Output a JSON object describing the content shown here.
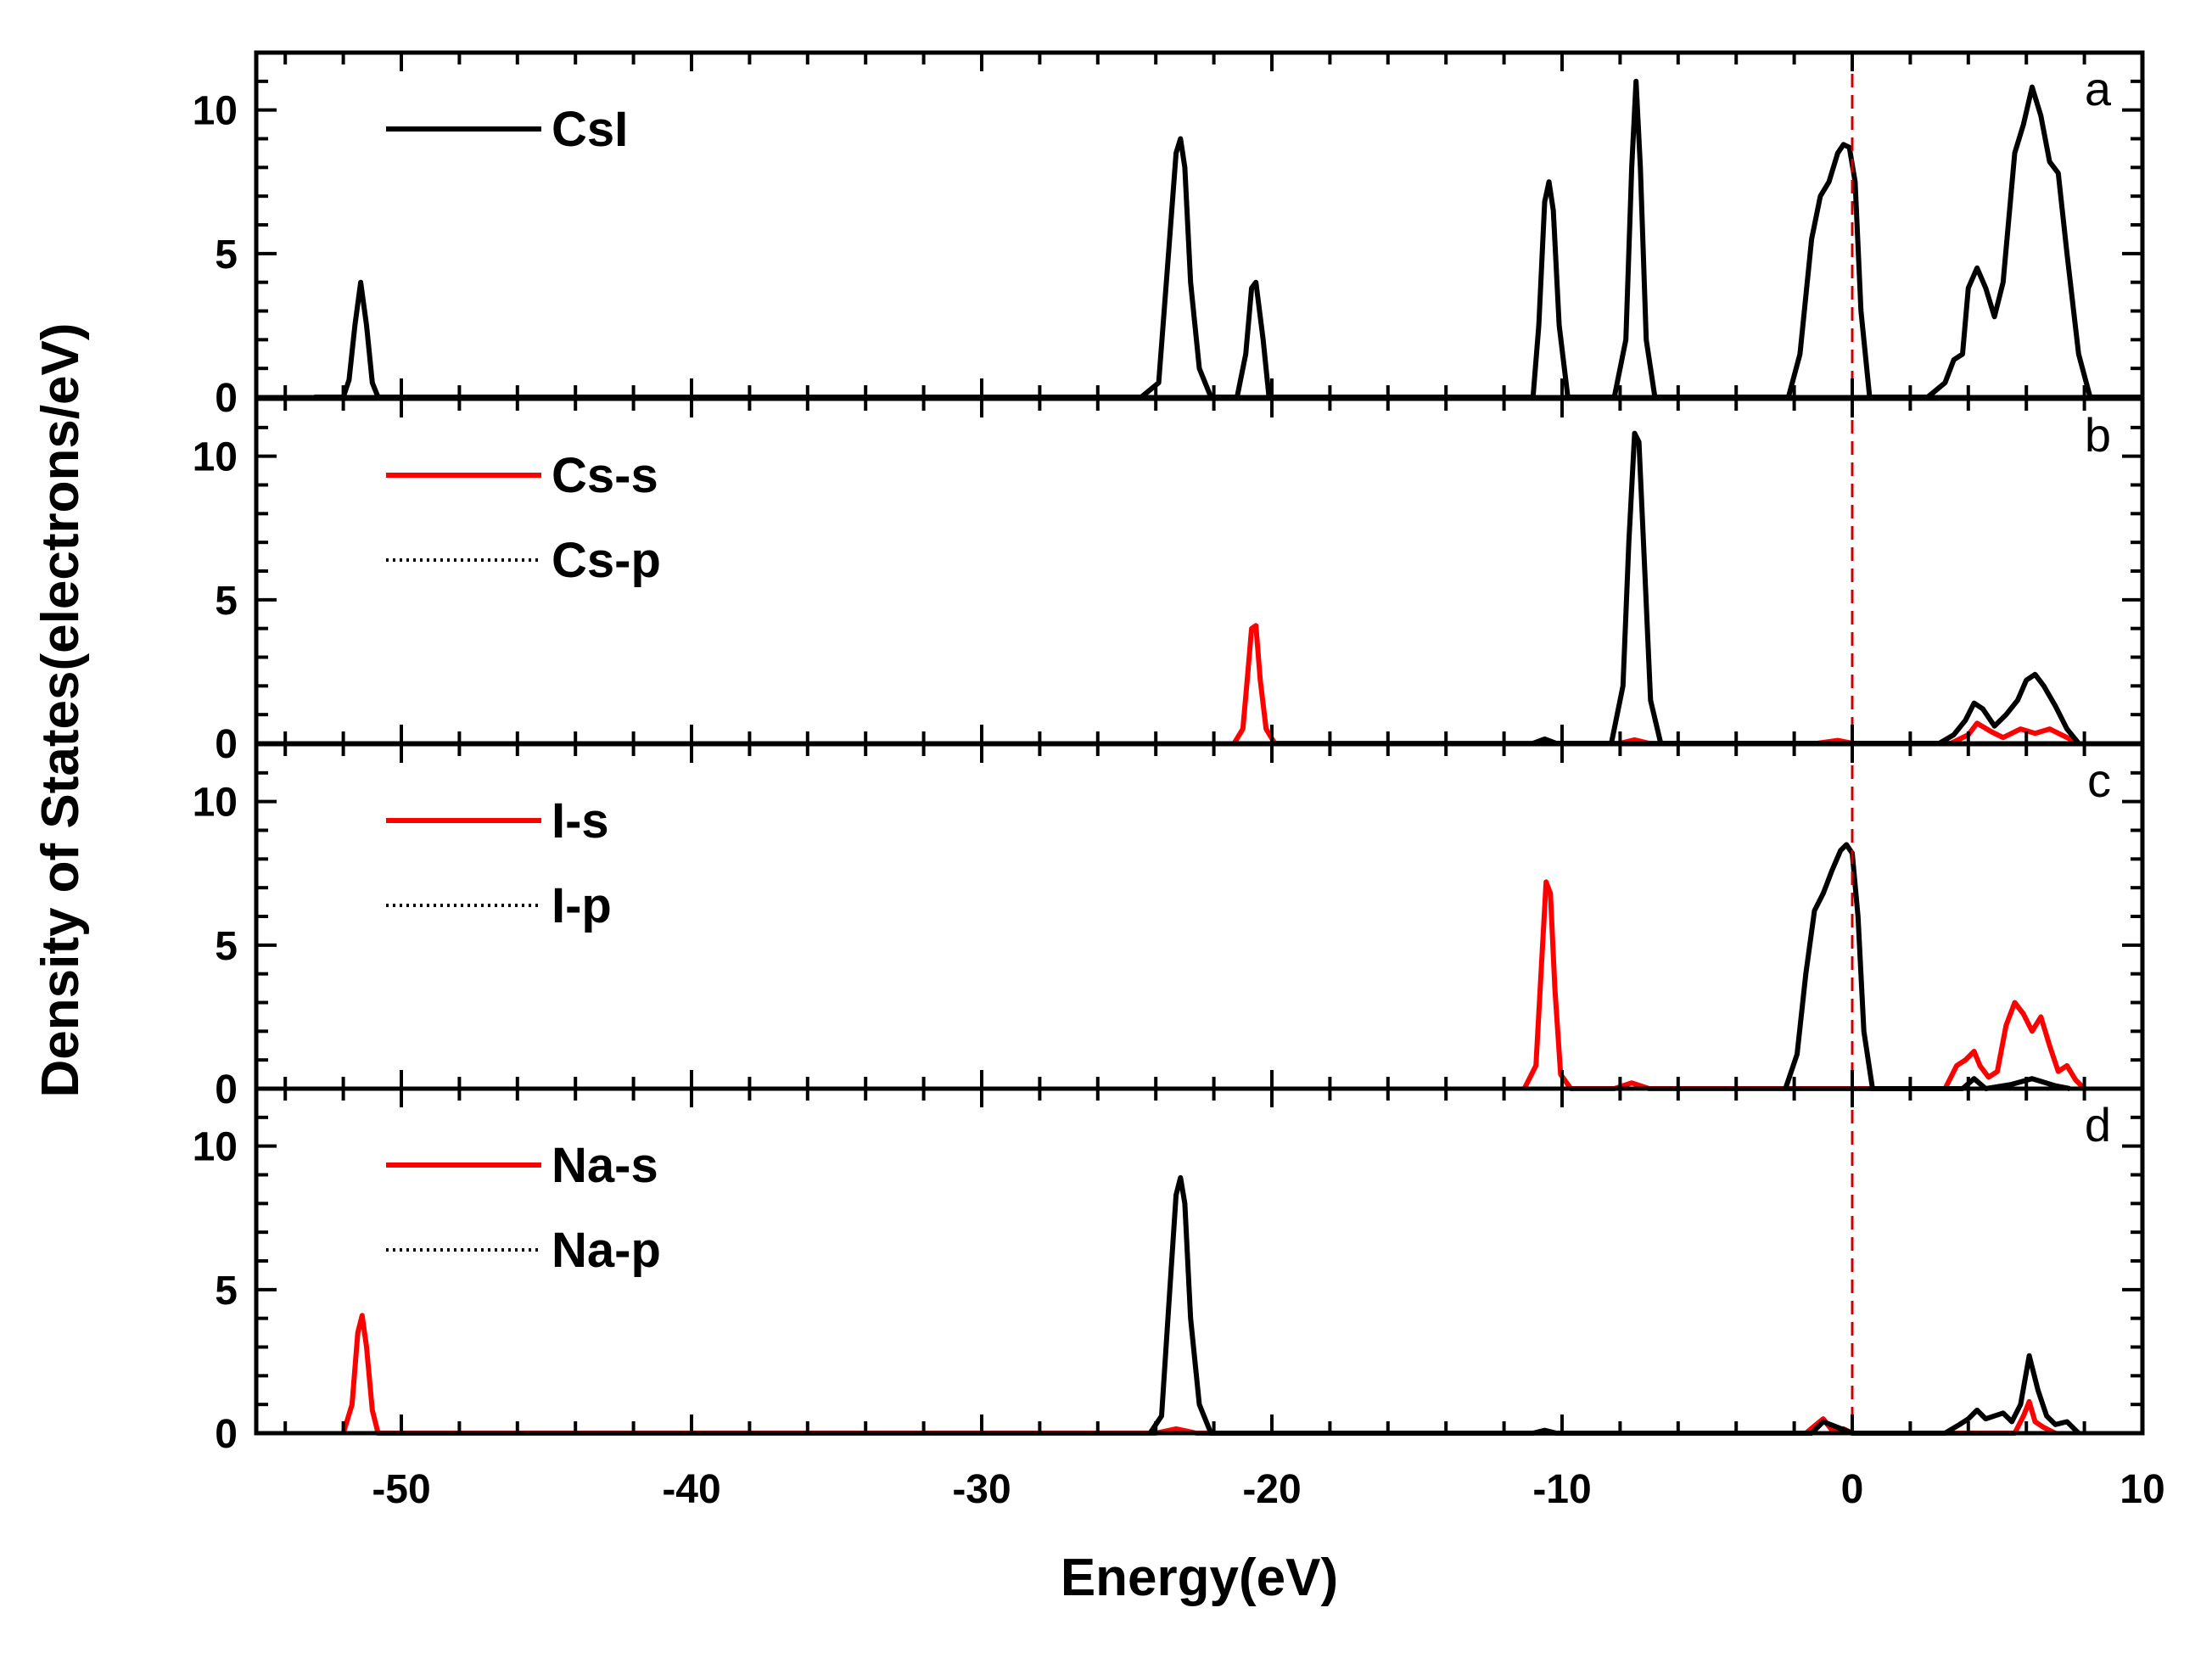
{
  "chart_data": {
    "type": "line",
    "title": "",
    "xlabel": "Energy(eV)",
    "ylabel": "Density of States(electrons/eV)",
    "xlim": [
      -55,
      10
    ],
    "ylim": [
      0,
      12
    ],
    "xticks": [
      -50,
      -40,
      -30,
      -20,
      -10,
      0,
      10
    ],
    "xtick_labels": [
      "-50",
      "-40",
      "-30",
      "-20",
      "-10",
      "0",
      "10"
    ],
    "yticks": [
      0,
      5,
      10
    ],
    "ytick_labels": [
      "0",
      "5",
      "10"
    ],
    "fermi_level": 0,
    "colors": {
      "black": "#000000",
      "red": "#ff0000",
      "fermi": "#cc0000"
    },
    "panels": [
      {
        "letter": "a",
        "legend": [
          {
            "label": "CsI",
            "style": "solid",
            "color": "#000000"
          }
        ],
        "series": [
          {
            "name": "CsI",
            "color": "#000000",
            "dash": "solid",
            "x": [
              -53,
              -52,
              -51.8,
              -51.6,
              -51.4,
              -51.2,
              -51.0,
              -50.8,
              -24.5,
              -23.9,
              -23.6,
              -23.3,
              -23.15,
              -23.0,
              -22.8,
              -22.5,
              -22.1,
              -21.2,
              -20.9,
              -20.7,
              -20.55,
              -20.3,
              -20.1,
              -11.5,
              -11.0,
              -10.8,
              -10.6,
              -10.45,
              -10.3,
              -10.1,
              -9.8,
              -8.2,
              -7.8,
              -7.6,
              -7.45,
              -7.3,
              -7.1,
              -6.8,
              -2.2,
              -1.8,
              -1.4,
              -1.1,
              -0.8,
              -0.5,
              -0.3,
              -0.1,
              0.1,
              0.3,
              0.6,
              2.6,
              3.2,
              3.5,
              3.8,
              4.0,
              4.3,
              4.6,
              4.9,
              5.2,
              5.6,
              5.9,
              6.2,
              6.5,
              6.8,
              7.1,
              7.4,
              7.8,
              8.2,
              10
            ],
            "y": [
              0,
              0,
              0.6,
              2.5,
              4.0,
              2.5,
              0.5,
              0,
              0,
              0.5,
              4.5,
              8.5,
              9.0,
              8.0,
              4.0,
              1.0,
              0,
              0,
              1.5,
              3.8,
              4.0,
              2.0,
              0,
              0,
              0,
              2.5,
              6.8,
              7.5,
              6.5,
              2.5,
              0,
              0,
              2.0,
              8.0,
              11.0,
              8.0,
              2.0,
              0,
              0,
              1.5,
              5.5,
              7.0,
              7.5,
              8.5,
              8.8,
              8.7,
              7.5,
              3.0,
              0,
              0,
              0.5,
              1.3,
              1.5,
              3.8,
              4.5,
              3.8,
              2.8,
              4.0,
              8.5,
              9.5,
              10.8,
              9.8,
              8.2,
              7.8,
              5.0,
              1.5,
              0,
              0
            ]
          }
        ]
      },
      {
        "letter": "b",
        "legend": [
          {
            "label": "Cs-s",
            "style": "solid",
            "color": "#ff0000"
          },
          {
            "label": "Cs-p",
            "style": "dotted",
            "color": "#000000"
          }
        ],
        "series": [
          {
            "name": "Cs-s",
            "color": "#ff0000",
            "dash": "solid",
            "x": [
              -21.3,
              -21.0,
              -20.85,
              -20.7,
              -20.55,
              -20.4,
              -20.2,
              -19.9,
              -8.0,
              -7.5,
              -7.0,
              -1.2,
              -0.5,
              0,
              3.4,
              4.0,
              4.3,
              4.8,
              5.2,
              5.8,
              6.3,
              6.8,
              7.4,
              7.8
            ],
            "y": [
              0,
              0.5,
              2.2,
              4.0,
              4.1,
              2.2,
              0.5,
              0,
              0,
              0.12,
              0,
              0,
              0.1,
              0,
              0,
              0.3,
              0.7,
              0.4,
              0.2,
              0.5,
              0.35,
              0.5,
              0.2,
              0
            ],
            "extra_zero": true
          },
          {
            "name": "Cs-p",
            "color": "#000000",
            "dash": "solid",
            "x": [
              -11.0,
              -10.6,
              -10.2,
              -8.3,
              -7.9,
              -7.7,
              -7.5,
              -7.35,
              -7.15,
              -6.95,
              -6.6,
              3.0,
              3.5,
              3.9,
              4.2,
              4.5,
              4.9,
              5.3,
              5.7,
              6.0,
              6.3,
              6.6,
              7.0,
              7.4,
              7.8
            ],
            "y": [
              0,
              0.15,
              0,
              0,
              2.0,
              7.0,
              10.8,
              10.5,
              6.0,
              1.5,
              0,
              0,
              0.3,
              0.8,
              1.4,
              1.2,
              0.6,
              1.0,
              1.5,
              2.2,
              2.4,
              2.0,
              1.3,
              0.5,
              0
            ]
          }
        ]
      },
      {
        "letter": "c",
        "legend": [
          {
            "label": "I-s",
            "style": "solid",
            "color": "#ff0000"
          },
          {
            "label": "I-p",
            "style": "dotted",
            "color": "#000000"
          }
        ],
        "series": [
          {
            "name": "I-s",
            "color": "#ff0000",
            "dash": "solid",
            "x": [
              -11.3,
              -10.9,
              -10.7,
              -10.55,
              -10.4,
              -10.25,
              -10.05,
              -9.7,
              -8.2,
              -7.6,
              -7.0,
              3.2,
              3.6,
              3.9,
              4.2,
              4.4,
              4.7,
              5.0,
              5.3,
              5.6,
              5.9,
              6.2,
              6.5,
              6.8,
              7.1,
              7.4,
              7.7,
              8.0
            ],
            "y": [
              0,
              0.8,
              4.5,
              7.2,
              6.8,
              3.5,
              0.5,
              0,
              0,
              0.2,
              0,
              0,
              0.8,
              1.0,
              1.3,
              0.8,
              0.4,
              0.6,
              2.2,
              3.0,
              2.6,
              2.0,
              2.5,
              1.5,
              0.6,
              0.8,
              0.3,
              0
            ],
            "extra_zero": true
          },
          {
            "name": "I-p",
            "color": "#000000",
            "dash": "solid",
            "x": [
              -2.3,
              -1.9,
              -1.6,
              -1.3,
              -1.0,
              -0.7,
              -0.4,
              -0.2,
              0.0,
              0.2,
              0.4,
              0.7,
              3.8,
              4.2,
              4.6,
              5.5,
              6.2,
              7.0,
              7.5
            ],
            "y": [
              0,
              1.2,
              4.0,
              6.2,
              6.8,
              7.6,
              8.3,
              8.5,
              8.2,
              6.0,
              2.0,
              0,
              0,
              0.35,
              0,
              0.15,
              0.35,
              0.1,
              0
            ]
          }
        ]
      },
      {
        "letter": "d",
        "legend": [
          {
            "label": "Na-s",
            "style": "solid",
            "color": "#ff0000"
          },
          {
            "label": "Na-p",
            "style": "dotted",
            "color": "#000000"
          }
        ],
        "series": [
          {
            "name": "Na-s",
            "color": "#ff0000",
            "dash": "solid",
            "x": [
              -52.0,
              -51.7,
              -51.5,
              -51.35,
              -51.2,
              -51.0,
              -50.8,
              -24.0,
              -23.3,
              -22.6,
              -1.6,
              -1.3,
              -1.0,
              -0.7,
              -0.3,
              0,
              5.6,
              5.9,
              6.1,
              6.3,
              6.6,
              7.0
            ],
            "y": [
              0,
              1.0,
              3.5,
              4.1,
              3.0,
              0.8,
              0,
              0,
              0.15,
              0,
              0,
              0.25,
              0.5,
              0.1,
              0.15,
              0,
              0,
              0.6,
              1.1,
              0.4,
              0.2,
              0
            ],
            "extra_zero": true
          },
          {
            "name": "Na-p",
            "color": "#000000",
            "dash": "solid",
            "x": [
              -24.2,
              -23.8,
              -23.55,
              -23.3,
              -23.15,
              -23.0,
              -22.8,
              -22.5,
              -22.1,
              -11.0,
              -10.6,
              -10.2,
              -1.4,
              -1.0,
              -0.5,
              0,
              3.2,
              3.7,
              4.0,
              4.3,
              4.6,
              4.9,
              5.2,
              5.5,
              5.8,
              6.1,
              6.4,
              6.7,
              7.0,
              7.4,
              7.8
            ],
            "y": [
              0,
              0.6,
              4.5,
              8.3,
              8.9,
              8.0,
              4.0,
              1.0,
              0,
              0,
              0.1,
              0,
              0,
              0.4,
              0.2,
              0,
              0,
              0.3,
              0.5,
              0.8,
              0.5,
              0.6,
              0.7,
              0.4,
              1.0,
              2.7,
              1.5,
              0.6,
              0.3,
              0.4,
              0
            ]
          }
        ]
      }
    ]
  }
}
